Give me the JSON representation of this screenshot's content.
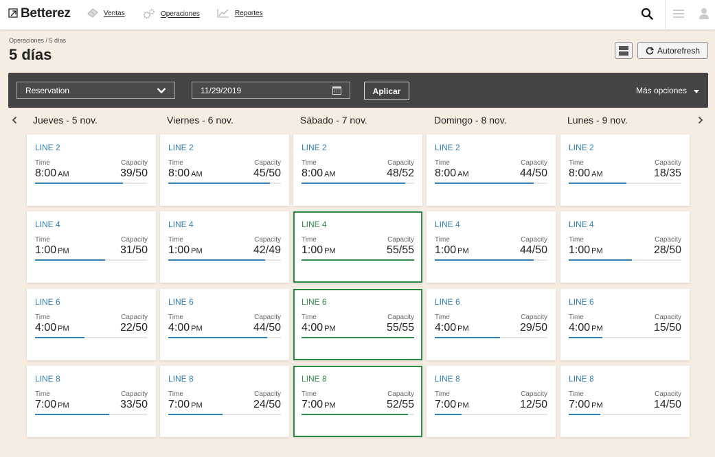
{
  "nav": {
    "brand": "Betterez",
    "links": [
      {
        "label": "Ventas",
        "icon": "ticket-icon"
      },
      {
        "label": "Operaciones",
        "icon": "gears-icon"
      },
      {
        "label": "Reportes",
        "icon": "chart-icon"
      }
    ]
  },
  "header": {
    "breadcrumb": "Operaciones / 5 días",
    "title": "5 días",
    "autorefresh_label": "Autorefresh"
  },
  "filters": {
    "type_value": "Reservation",
    "date_value": "11/29/2019",
    "apply_label": "Aplicar",
    "more_options_label": "Más opciones"
  },
  "days": [
    {
      "label": "Jueves - 5 nov."
    },
    {
      "label": "Viernes - 6 nov."
    },
    {
      "label": "Sábado - 7 nov."
    },
    {
      "label": "Domingo - 8 nov."
    },
    {
      "label": "Lunes - 9 nov."
    }
  ],
  "labels": {
    "time": "Time",
    "capacity": "Capacity"
  },
  "colors": {
    "accent": "#2f7fb5",
    "full": "#2e8b47",
    "filterbar": "#444444",
    "background": "#f5ece2"
  },
  "schedule": [
    [
      {
        "line": "LINE 2",
        "time": "8:00",
        "ampm": "AM",
        "capacity": "39/50",
        "sold": 39,
        "total": 50
      },
      {
        "line": "LINE 4",
        "time": "1:00",
        "ampm": "PM",
        "capacity": "31/50",
        "sold": 31,
        "total": 50
      },
      {
        "line": "LINE 6",
        "time": "4:00",
        "ampm": "PM",
        "capacity": "22/50",
        "sold": 22,
        "total": 50
      },
      {
        "line": "LINE 8",
        "time": "7:00",
        "ampm": "PM",
        "capacity": "33/50",
        "sold": 33,
        "total": 50
      }
    ],
    [
      {
        "line": "LINE 2",
        "time": "8:00",
        "ampm": "AM",
        "capacity": "45/50",
        "sold": 45,
        "total": 50
      },
      {
        "line": "LINE 4",
        "time": "1:00",
        "ampm": "PM",
        "capacity": "42/49",
        "sold": 42,
        "total": 49
      },
      {
        "line": "LINE 6",
        "time": "4:00",
        "ampm": "PM",
        "capacity": "44/50",
        "sold": 44,
        "total": 50
      },
      {
        "line": "LINE 8",
        "time": "7:00",
        "ampm": "PM",
        "capacity": "24/50",
        "sold": 24,
        "total": 50
      }
    ],
    [
      {
        "line": "LINE 2",
        "time": "8:00",
        "ampm": "AM",
        "capacity": "48/52",
        "sold": 48,
        "total": 52
      },
      {
        "line": "LINE 4",
        "time": "1:00",
        "ampm": "PM",
        "capacity": "55/55",
        "sold": 55,
        "total": 55
      },
      {
        "line": "LINE 6",
        "time": "4:00",
        "ampm": "PM",
        "capacity": "55/55",
        "sold": 55,
        "total": 55
      },
      {
        "line": "LINE 8",
        "time": "7:00",
        "ampm": "PM",
        "capacity": "52/55",
        "sold": 52,
        "total": 55,
        "highlight": true
      }
    ],
    [
      {
        "line": "LINE 2",
        "time": "8:00",
        "ampm": "AM",
        "capacity": "44/50",
        "sold": 44,
        "total": 50
      },
      {
        "line": "LINE 4",
        "time": "1:00",
        "ampm": "PM",
        "capacity": "44/50",
        "sold": 44,
        "total": 50
      },
      {
        "line": "LINE 6",
        "time": "4:00",
        "ampm": "PM",
        "capacity": "29/50",
        "sold": 29,
        "total": 50
      },
      {
        "line": "LINE 8",
        "time": "7:00",
        "ampm": "PM",
        "capacity": "12/50",
        "sold": 12,
        "total": 50
      }
    ],
    [
      {
        "line": "LINE 2",
        "time": "8:00",
        "ampm": "AM",
        "capacity": "18/35",
        "sold": 18,
        "total": 35
      },
      {
        "line": "LINE 4",
        "time": "1:00",
        "ampm": "PM",
        "capacity": "28/50",
        "sold": 28,
        "total": 50
      },
      {
        "line": "LINE 6",
        "time": "4:00",
        "ampm": "PM",
        "capacity": "15/50",
        "sold": 15,
        "total": 50
      },
      {
        "line": "LINE 8",
        "time": "7:00",
        "ampm": "PM",
        "capacity": "14/50",
        "sold": 14,
        "total": 50
      }
    ]
  ]
}
